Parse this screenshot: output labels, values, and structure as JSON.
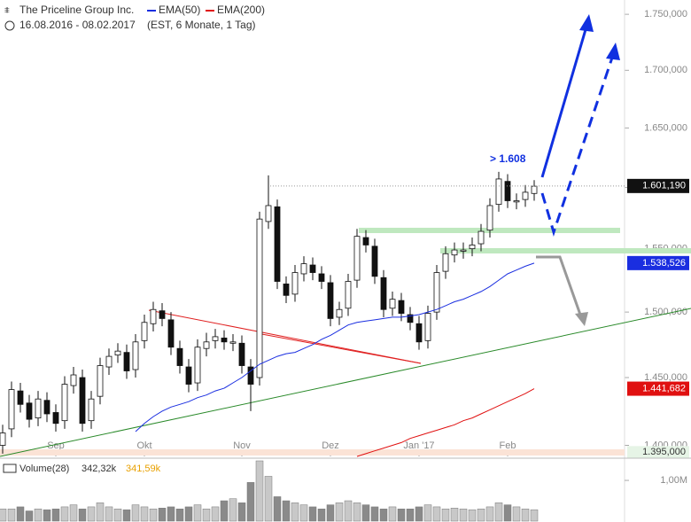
{
  "chart_data": {
    "type": "candlestick",
    "title": "The Priceline Group Inc.",
    "date_range": "16.08.2016 - 08.02.2017",
    "period_info": "(EST, 6 Monate, 1 Tag)",
    "categories": [
      null,
      null,
      null,
      null,
      null,
      null,
      "Sep",
      null,
      null,
      null,
      null,
      null,
      null,
      null,
      null,
      null,
      "Okt",
      null,
      null,
      null,
      null,
      null,
      null,
      null,
      null,
      null,
      null,
      "Nov",
      null,
      null,
      null,
      null,
      null,
      null,
      null,
      null,
      null,
      "Dez",
      null,
      null,
      null,
      null,
      null,
      null,
      null,
      null,
      null,
      "Jan '17",
      null,
      null,
      null,
      null,
      null,
      null,
      null,
      null,
      null,
      "Feb",
      null,
      null,
      null
    ],
    "open": [
      1400,
      1412,
      1440,
      1431,
      1420,
      1433,
      1424,
      1418,
      1444,
      1450,
      1418,
      1436,
      1458,
      1467,
      1469,
      1456,
      1478,
      1491,
      1501,
      1494,
      1472,
      1458,
      1446,
      1472,
      1478,
      1480,
      1476,
      1476,
      1458,
      1450,
      1572,
      1584,
      1522,
      1514,
      1530,
      1537,
      1530,
      1523,
      1496,
      1503,
      1525,
      1559,
      1552,
      1527,
      1503,
      1509,
      1498,
      1491,
      1478,
      1500,
      1532,
      1545,
      1548,
      1550,
      1554,
      1565,
      1586,
      1605,
      1588,
      1590,
      1595
    ],
    "high": [
      1415,
      1447,
      1446,
      1437,
      1440,
      1439,
      1430,
      1451,
      1458,
      1456,
      1440,
      1465,
      1472,
      1476,
      1475,
      1483,
      1498,
      1508,
      1507,
      1500,
      1478,
      1464,
      1479,
      1484,
      1487,
      1486,
      1483,
      1482,
      1464,
      1580,
      1610,
      1590,
      1528,
      1537,
      1544,
      1543,
      1536,
      1529,
      1508,
      1530,
      1566,
      1565,
      1558,
      1533,
      1516,
      1515,
      1504,
      1497,
      1505,
      1537,
      1552,
      1555,
      1555,
      1559,
      1570,
      1591,
      1613,
      1611,
      1595,
      1602,
      1606
    ],
    "low": [
      1394,
      1406,
      1424,
      1413,
      1414,
      1417,
      1410,
      1412,
      1438,
      1410,
      1412,
      1430,
      1452,
      1461,
      1449,
      1450,
      1472,
      1485,
      1489,
      1467,
      1453,
      1439,
      1440,
      1466,
      1472,
      1471,
      1470,
      1453,
      1425,
      1444,
      1566,
      1518,
      1507,
      1508,
      1524,
      1525,
      1518,
      1489,
      1490,
      1497,
      1519,
      1547,
      1522,
      1496,
      1497,
      1493,
      1486,
      1471,
      1472,
      1494,
      1526,
      1539,
      1542,
      1544,
      1548,
      1559,
      1580,
      1583,
      1582,
      1584,
      1589
    ],
    "close": [
      1409,
      1441,
      1430,
      1419,
      1434,
      1423,
      1416,
      1445,
      1452,
      1416,
      1434,
      1459,
      1466,
      1470,
      1455,
      1477,
      1492,
      1502,
      1495,
      1473,
      1459,
      1445,
      1473,
      1477,
      1481,
      1477,
      1477,
      1459,
      1445,
      1574,
      1585,
      1524,
      1513,
      1531,
      1538,
      1531,
      1524,
      1495,
      1502,
      1524,
      1560,
      1553,
      1528,
      1502,
      1510,
      1499,
      1492,
      1477,
      1499,
      1531,
      1546,
      1549,
      1549,
      1553,
      1564,
      1585,
      1607,
      1589,
      1589,
      1596,
      1601
    ],
    "series": [
      {
        "name": "EMA(50)",
        "color": "#1a2ee0",
        "last_label": {
          "value": 1538.526,
          "label": "1.538,526"
        },
        "values": [
          null,
          null,
          null,
          null,
          null,
          null,
          null,
          null,
          null,
          null,
          null,
          null,
          null,
          null,
          null,
          1410,
          1416,
          1421,
          1425,
          1428,
          1430,
          1432,
          1435,
          1437,
          1440,
          1442,
          1446,
          1450,
          1455,
          1460,
          1463,
          1466,
          1468,
          1469,
          1472,
          1475,
          1479,
          1482,
          1486,
          1490,
          1492,
          1493,
          1494,
          1495,
          1496,
          1496,
          1497,
          1498,
          1500,
          1502,
          1505,
          1508,
          1510,
          1513,
          1516,
          1520,
          1525,
          1530,
          1533,
          1536,
          1538.526
        ]
      },
      {
        "name": "EMA(200)",
        "color": "#e01010",
        "last_label": {
          "value": 1441.682,
          "label": "1.441,682"
        },
        "values": [
          null,
          null,
          null,
          null,
          null,
          null,
          null,
          null,
          null,
          null,
          null,
          null,
          null,
          null,
          null,
          null,
          null,
          null,
          null,
          null,
          null,
          null,
          null,
          null,
          null,
          null,
          null,
          null,
          null,
          null,
          null,
          null,
          null,
          null,
          null,
          null,
          null,
          null,
          null,
          null,
          1392,
          1394,
          1396,
          1398,
          1400,
          1402,
          1405,
          1407,
          1409,
          1411,
          1413,
          1415,
          1418,
          1420,
          1423,
          1426,
          1429,
          1432,
          1435,
          1438,
          1441.682
        ]
      }
    ],
    "log": true,
    "ylim": [
      1392,
      1763
    ],
    "yticks": [
      {
        "value": 1400,
        "label": "1.400,000"
      },
      {
        "value": 1450,
        "label": "1.450,000"
      },
      {
        "value": 1500,
        "label": "1.500,000"
      },
      {
        "value": 1550,
        "label": "1.550,000"
      },
      {
        "value": 1600,
        "label": "1.600,000"
      },
      {
        "value": 1650,
        "label": "1.650,000"
      },
      {
        "value": 1700,
        "label": "1.700,000"
      },
      {
        "value": 1750,
        "label": "1.750,000"
      }
    ],
    "last_price": {
      "value": 1601.19,
      "label": "1.601,190"
    },
    "level": {
      "value": 1395,
      "label": "1.395,000"
    },
    "annotation": "> 1.608",
    "volume": {
      "title": "Volume(28)",
      "avg_1": "342,32k",
      "avg_2": "341,59k",
      "values": [
        0.3,
        0.3,
        0.35,
        0.25,
        0.3,
        0.28,
        0.3,
        0.35,
        0.4,
        0.3,
        0.35,
        0.45,
        0.35,
        0.3,
        0.28,
        0.4,
        0.35,
        0.3,
        0.32,
        0.35,
        0.3,
        0.35,
        0.4,
        0.3,
        0.35,
        0.5,
        0.55,
        0.45,
        0.95,
        1.48,
        1.1,
        0.6,
        0.5,
        0.45,
        0.4,
        0.35,
        0.3,
        0.4,
        0.45,
        0.5,
        0.45,
        0.4,
        0.35,
        0.3,
        0.35,
        0.3,
        0.3,
        0.35,
        0.4,
        0.35,
        0.3,
        0.32,
        0.3,
        0.28,
        0.3,
        0.35,
        0.45,
        0.4,
        0.35,
        0.3,
        0.28
      ],
      "ylim": [
        0,
        1.48
      ],
      "yticks": [
        {
          "value": 1,
          "label": "1,00M"
        }
      ]
    }
  }
}
